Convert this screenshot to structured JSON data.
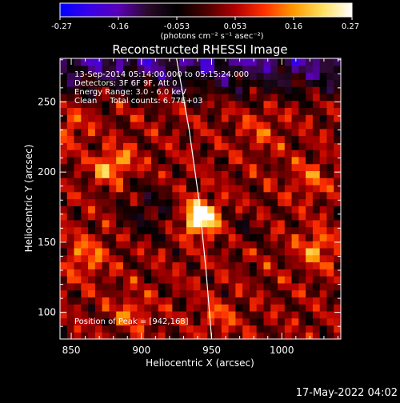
{
  "colorbar": {
    "min": -0.27,
    "max": 0.27,
    "tick_labels": [
      "-0.27",
      "-0.16",
      "-0.053",
      "0.053",
      "0.16",
      "0.27"
    ],
    "unit_label": "(photons cm⁻² s⁻¹ asec⁻²)",
    "colors": [
      "#0000ff",
      "#3a00e8",
      "#5a00b8",
      "#2a0a2a",
      "#000000",
      "#4a0000",
      "#b00000",
      "#ff3000",
      "#ff9a00",
      "#ffe060",
      "#ffffff"
    ]
  },
  "title": "Reconstructed RHESSI Image",
  "info": {
    "time_range": "13-Sep-2014 05:14:00.000 to 05:15:24.000",
    "detectors": "Detectors: 3F 6F 9F, Att 0",
    "energy": "Energy Range: 3.0 - 6.0 keV",
    "clean": "Clean     Total counts: 6.77E+03",
    "peak": "Position of Peak = [942,168]"
  },
  "footer": {
    "date": "17-May-2022 04:02"
  },
  "chart_data": {
    "type": "heatmap",
    "title": "Reconstructed RHESSI Image",
    "xlabel": "Heliocentric X (arcsec)",
    "ylabel": "Heliocentric Y (arcsec)",
    "xlim": [
      842,
      1042
    ],
    "ylim": [
      81,
      281
    ],
    "x_ticks": [
      850,
      900,
      950,
      1000
    ],
    "y_ticks": [
      100,
      150,
      200,
      250
    ],
    "peak": {
      "x": 942,
      "y": 168,
      "value": 0.27
    },
    "value_range": [
      -0.27,
      0.27
    ],
    "limb_arc": {
      "points": [
        [
          925,
          281
        ],
        [
          934,
          230
        ],
        [
          941,
          180
        ],
        [
          946,
          130
        ],
        [
          950,
          81
        ]
      ]
    }
  }
}
